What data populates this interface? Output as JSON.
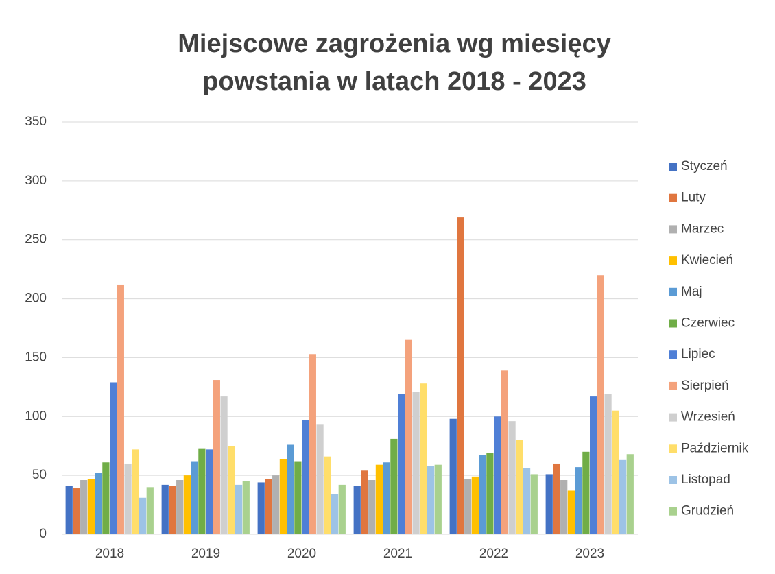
{
  "chart_data": {
    "type": "bar",
    "title": [
      "Miejscowe zagrożenia wg miesięcy",
      "powstania w latach 2018 - 2023"
    ],
    "categories": [
      "2018",
      "2019",
      "2020",
      "2021",
      "2022",
      "2023"
    ],
    "series": [
      {
        "name": "Styczeń",
        "color": "#4472c4",
        "values": [
          41,
          42,
          44,
          41,
          98,
          51
        ]
      },
      {
        "name": "Luty",
        "color": "#e0763f",
        "values": [
          39,
          41,
          47,
          54,
          269,
          60
        ]
      },
      {
        "name": "Marzec",
        "color": "#b0b0b0",
        "values": [
          46,
          46,
          50,
          46,
          47,
          46
        ]
      },
      {
        "name": "Kwiecień",
        "color": "#ffc000",
        "values": [
          47,
          50,
          64,
          59,
          49,
          37
        ]
      },
      {
        "name": "Maj",
        "color": "#5b9bd5",
        "values": [
          52,
          62,
          76,
          61,
          67,
          57
        ]
      },
      {
        "name": "Czerwiec",
        "color": "#70ad47",
        "values": [
          61,
          73,
          62,
          81,
          69,
          70
        ]
      },
      {
        "name": "Lipiec",
        "color": "#4f7fd6",
        "values": [
          129,
          72,
          97,
          119,
          100,
          117
        ]
      },
      {
        "name": "Sierpień",
        "color": "#f4a27c",
        "values": [
          212,
          131,
          153,
          165,
          139,
          220
        ]
      },
      {
        "name": "Wrzesień",
        "color": "#cfcfcf",
        "values": [
          60,
          117,
          93,
          121,
          96,
          119
        ]
      },
      {
        "name": "Październik",
        "color": "#ffde6a",
        "values": [
          72,
          75,
          66,
          128,
          80,
          105
        ]
      },
      {
        "name": "Listopad",
        "color": "#9dc3e6",
        "values": [
          31,
          42,
          34,
          58,
          56,
          63
        ]
      },
      {
        "name": "Grudzień",
        "color": "#a9d18e",
        "values": [
          40,
          45,
          42,
          59,
          51,
          68
        ]
      }
    ],
    "ylim": [
      0,
      350
    ],
    "yticks": [
      0,
      50,
      100,
      150,
      200,
      250,
      300,
      350
    ],
    "grid": true,
    "legend": "right"
  }
}
